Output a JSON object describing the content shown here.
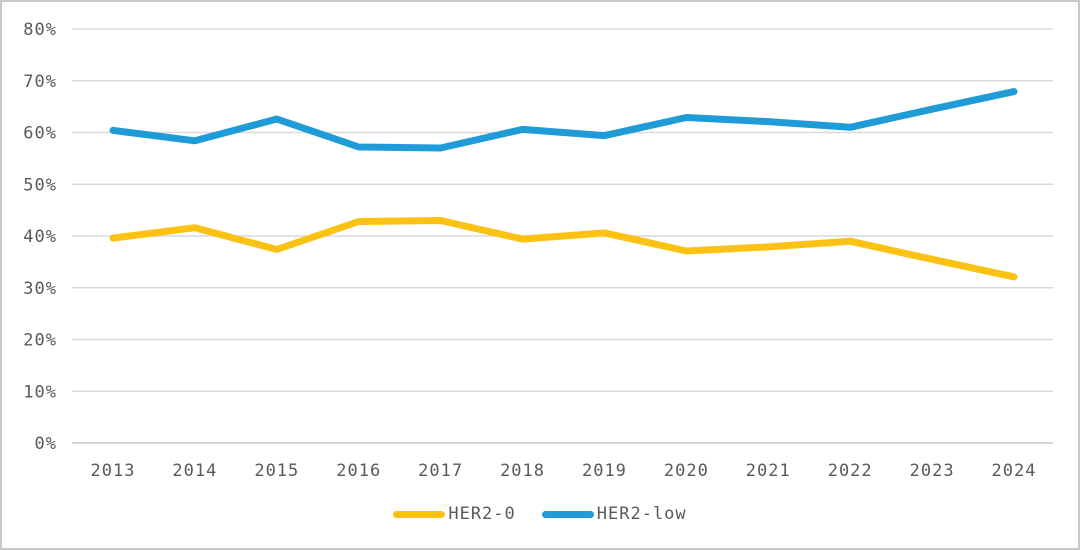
{
  "chart_data": {
    "type": "line",
    "title": "",
    "xlabel": "",
    "ylabel": "",
    "categories": [
      "2013",
      "2014",
      "2015",
      "2016",
      "2017",
      "2018",
      "2019",
      "2020",
      "2021",
      "2022",
      "2023",
      "2024"
    ],
    "series": [
      {
        "name": "HER2-0",
        "color": "#FCC213",
        "values": [
          39.6,
          41.6,
          37.4,
          42.8,
          43.0,
          39.4,
          40.6,
          37.1,
          37.9,
          39.0,
          35.5,
          32.1
        ]
      },
      {
        "name": "HER2-low",
        "color": "#1F9BD7",
        "values": [
          60.4,
          58.4,
          62.6,
          57.2,
          57.0,
          60.6,
          59.4,
          62.9,
          62.1,
          61.0,
          64.5,
          67.9
        ]
      }
    ],
    "ylim": [
      0,
      80
    ],
    "ytick_step": 10,
    "ytick_labels": [
      "0%",
      "10%",
      "20%",
      "30%",
      "40%",
      "50%",
      "60%",
      "70%",
      "80%"
    ],
    "grid": true,
    "legend_position": "bottom"
  },
  "styles": {
    "grid_color": "#d9d9d9",
    "baseline_color": "#c6c6c6",
    "text_color": "#59595b",
    "border_color": "#c8c8c8",
    "background": "#ffffff"
  }
}
